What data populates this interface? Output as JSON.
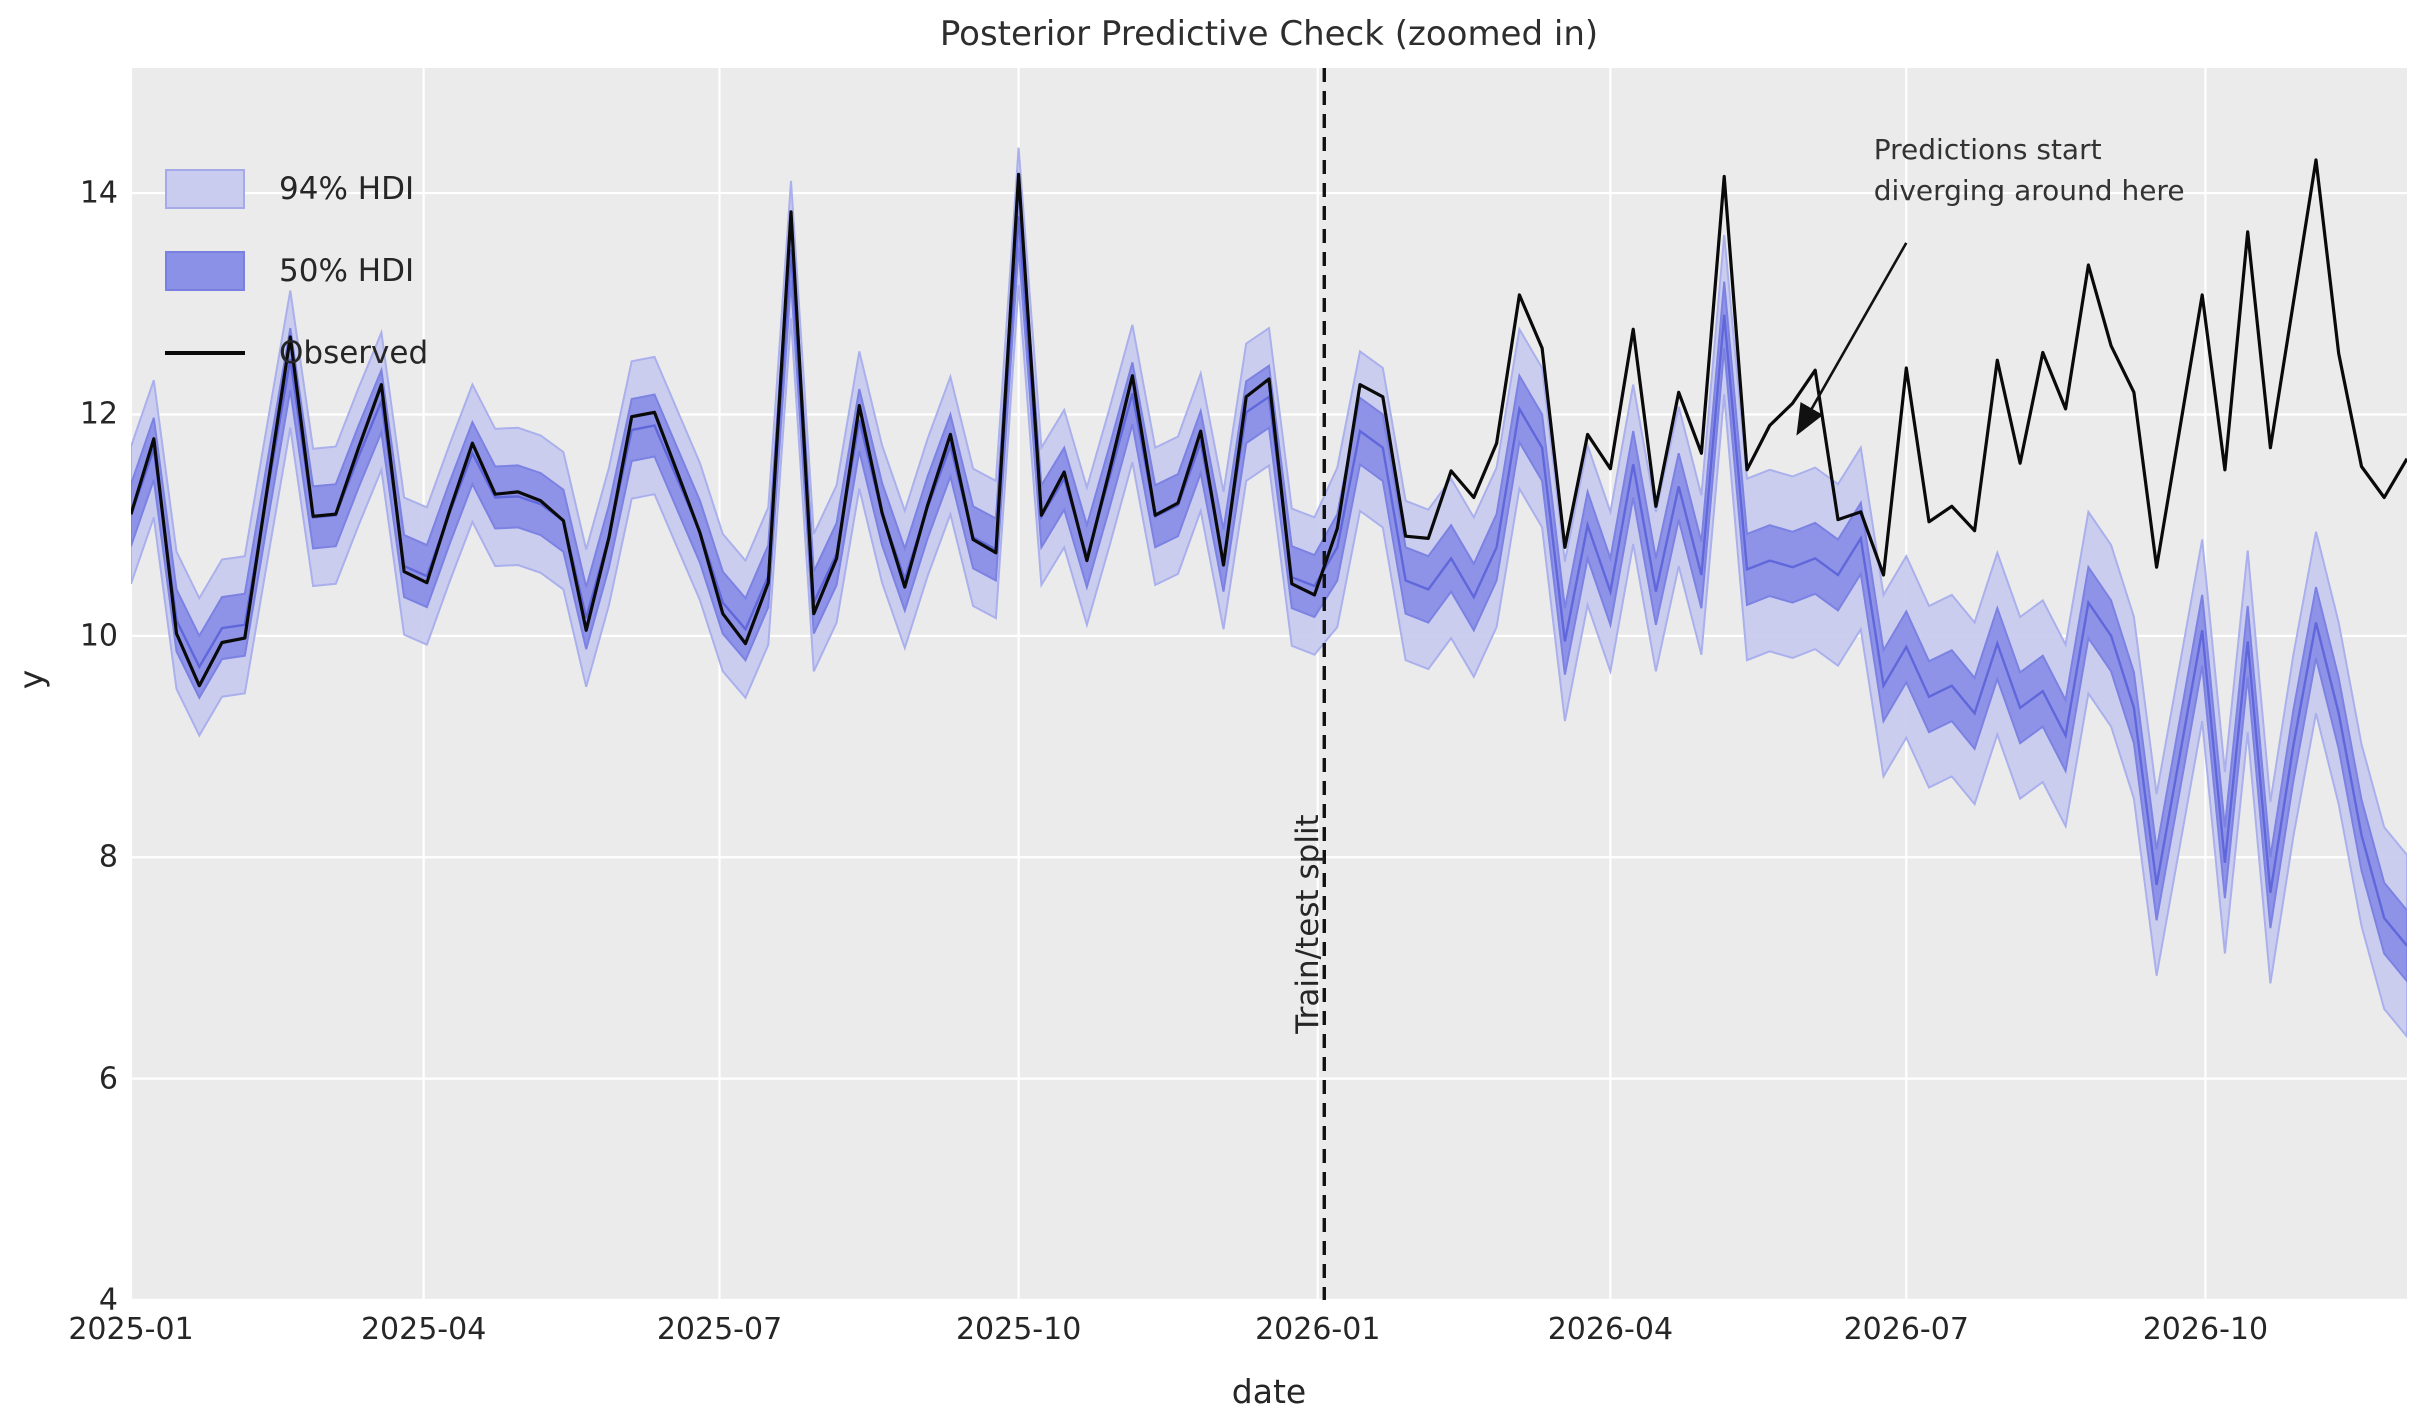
{
  "chart_data": {
    "type": "line",
    "title": "Posterior Predictive Check (zoomed in)",
    "xlabel": "date",
    "ylabel": "y",
    "background": {
      "axes": "#ebebeb",
      "figure": "#ffffff",
      "grid_color": "#ffffff",
      "grid": "on"
    },
    "ylim": [
      4.0,
      15.13
    ],
    "yticks": [
      4,
      6,
      8,
      10,
      12,
      14
    ],
    "x_start_date": "2025-01-01",
    "x_step_days": 7,
    "xlim_days": [
      0,
      700
    ],
    "xticks": [
      {
        "label": "2025-01",
        "day": 0
      },
      {
        "label": "2025-04",
        "day": 90
      },
      {
        "label": "2025-07",
        "day": 181
      },
      {
        "label": "2025-10",
        "day": 273
      },
      {
        "label": "2026-01",
        "day": 365
      },
      {
        "label": "2026-04",
        "day": 455
      },
      {
        "label": "2026-07",
        "day": 546
      },
      {
        "label": "2026-10",
        "day": 638
      }
    ],
    "legend": {
      "position": "upper-left",
      "entries": [
        {
          "label": "94% HDI",
          "swatch": "band",
          "fill": "#c9cbef",
          "edge": "#a6aae9"
        },
        {
          "label": "50% HDI",
          "swatch": "band",
          "fill": "#8b91e6",
          "edge": "#7a80e0"
        },
        {
          "label": "Observed",
          "swatch": "line",
          "color": "#0a0a0a"
        }
      ]
    },
    "split_line": {
      "label": "Train/test split",
      "date": "2026-01-03",
      "day": 367,
      "color": "#111111",
      "style": "dashed",
      "label_pos": {
        "day": 362,
        "value": 7.4
      }
    },
    "annotation": {
      "lines": [
        "Predictions start",
        "diverging around here"
      ],
      "text_pos": {
        "day": 536,
        "value": 14.58
      },
      "arrow_from": {
        "day": 546,
        "value": 13.55
      },
      "arrow_to": {
        "day": 513,
        "value": 11.85
      },
      "color": "#333333"
    },
    "colors": {
      "observed": "#0a0a0a",
      "band_mean_line": "#5b63d8",
      "hdi94_fill": "#c9cbef",
      "hdi94_edge": "#aab0ec",
      "hdi50_fill": "#8b91e6",
      "hdi50_edge": "#7b82e2"
    },
    "series": [
      {
        "name": "Observed",
        "type": "line",
        "values": [
          11.1,
          11.78,
          10.02,
          9.55,
          9.94,
          9.98,
          11.35,
          12.7,
          11.08,
          11.1,
          11.7,
          12.27,
          10.58,
          10.48,
          11.13,
          11.74,
          11.28,
          11.3,
          11.22,
          11.04,
          10.05,
          10.89,
          11.98,
          12.02,
          11.48,
          10.93,
          10.2,
          9.93,
          10.48,
          13.83,
          10.2,
          10.7,
          12.08,
          11.11,
          10.44,
          11.18,
          11.82,
          10.87,
          10.75,
          14.17,
          11.09,
          11.48,
          10.68,
          11.5,
          12.35,
          11.09,
          11.2,
          11.85,
          10.64,
          12.16,
          12.32,
          10.47,
          10.37,
          10.97,
          12.27,
          12.16,
          10.9,
          10.88,
          11.49,
          11.25,
          11.74,
          13.08,
          12.6,
          10.8,
          11.82,
          11.51,
          12.77,
          11.17,
          12.2,
          11.65,
          14.15,
          11.5,
          11.9,
          12.1,
          12.4,
          11.05,
          11.12,
          10.55,
          12.42,
          11.03,
          11.17,
          10.95,
          12.49,
          11.56,
          12.56,
          12.05,
          13.35,
          12.62,
          12.2,
          10.62,
          11.85,
          13.08,
          11.5,
          13.65,
          11.7,
          13.0,
          14.3,
          12.55,
          11.53,
          11.25,
          11.6
        ]
      },
      {
        "name": "Posterior predictive mean",
        "type": "line",
        "values": [
          11.09,
          11.69,
          10.14,
          9.72,
          10.07,
          10.1,
          11.31,
          12.5,
          11.07,
          11.09,
          11.62,
          12.12,
          10.63,
          10.54,
          11.11,
          11.65,
          11.25,
          11.26,
          11.19,
          11.04,
          10.16,
          10.9,
          11.86,
          11.9,
          11.42,
          10.94,
          10.3,
          10.06,
          10.54,
          13.49,
          10.3,
          10.74,
          11.95,
          11.1,
          10.51,
          11.16,
          11.72,
          10.89,
          10.78,
          13.79,
          11.08,
          11.42,
          10.72,
          11.44,
          12.19,
          11.08,
          11.18,
          11.75,
          10.68,
          12.02,
          12.16,
          10.53,
          10.45,
          10.8,
          11.85,
          11.7,
          10.5,
          10.42,
          10.7,
          10.35,
          10.8,
          12.05,
          11.7,
          9.95,
          11.0,
          10.4,
          11.55,
          10.4,
          11.35,
          10.55,
          12.9,
          10.6,
          10.68,
          10.62,
          10.7,
          10.55,
          10.88,
          9.55,
          9.9,
          9.45,
          9.55,
          9.3,
          9.93,
          9.35,
          9.5,
          9.1,
          10.3,
          10.0,
          9.35,
          7.75,
          8.9,
          10.05,
          7.95,
          9.95,
          7.68,
          9.0,
          10.12,
          9.3,
          8.2,
          7.45,
          7.2
        ]
      },
      {
        "name": "50% HDI",
        "type": "band",
        "around": "Posterior predictive mean",
        "half_width_segments": [
          {
            "from_index": 0,
            "to_index": 52,
            "half_width": 0.28
          },
          {
            "from_index": 53,
            "to_index": 70,
            "half_width": 0.3
          },
          {
            "from_index": 71,
            "to_index": 100,
            "half_width": 0.32
          }
        ]
      },
      {
        "name": "94% HDI",
        "type": "band",
        "around": "Posterior predictive mean",
        "half_width_segments": [
          {
            "from_index": 0,
            "to_index": 52,
            "half_width": 0.62
          },
          {
            "from_index": 53,
            "to_index": 70,
            "half_width": 0.72
          },
          {
            "from_index": 71,
            "to_index": 100,
            "half_width": 0.82
          }
        ]
      }
    ]
  }
}
